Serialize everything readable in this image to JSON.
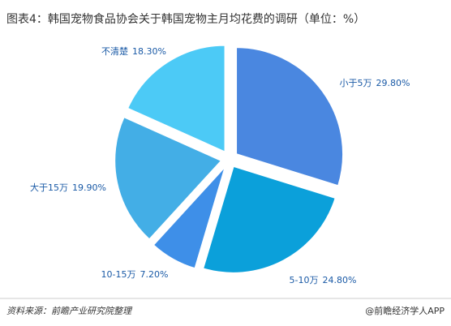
{
  "chart_data": {
    "type": "pie",
    "title": "图表4：韩国宠物食品协会关于韩国宠物主月均花费的调研（单位：%）",
    "categories": [
      "小于5万",
      "5-10万",
      "10-15万",
      "大于15万",
      "不清楚"
    ],
    "values": [
      29.8,
      24.8,
      7.2,
      19.9,
      18.3
    ],
    "value_labels": [
      "29.80%",
      "24.80%",
      "7.20%",
      "19.90%",
      "18.30%"
    ],
    "colors": [
      "#4a87e0",
      "#0ba0da",
      "#3e8fe8",
      "#43aee6",
      "#4ccaf6"
    ],
    "source": "资料来源：前瞻产业研究院整理",
    "credit": "@前瞻经济学人APP"
  }
}
